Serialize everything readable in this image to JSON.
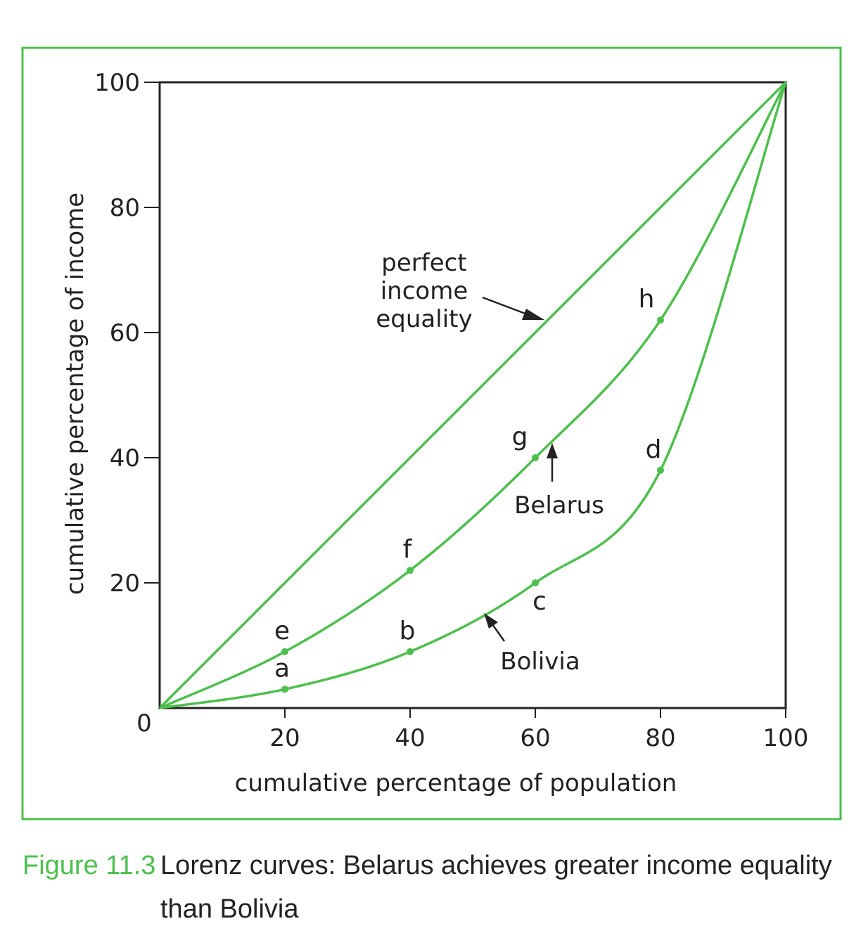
{
  "chart_data": {
    "type": "line",
    "xlabel": "cumulative percentage of population",
    "ylabel": "cumulative percentage of income",
    "xlim": [
      0,
      100
    ],
    "ylim": [
      0,
      100
    ],
    "x_ticks": [
      "20",
      "40",
      "60",
      "80",
      "100"
    ],
    "y_ticks": [
      "20",
      "40",
      "60",
      "80",
      "100"
    ],
    "origin_label": "0",
    "grid": false,
    "line_color": "#4cc04c",
    "series": [
      {
        "name": "perfect income equality",
        "x": [
          0,
          100
        ],
        "y": [
          0,
          100
        ]
      },
      {
        "name": "Belarus",
        "x": [
          0,
          20,
          40,
          60,
          80,
          100
        ],
        "y": [
          0,
          9,
          22,
          40,
          62,
          100
        ],
        "point_labels": [
          "",
          "e",
          "f",
          "g",
          "h",
          ""
        ]
      },
      {
        "name": "Bolivia",
        "x": [
          0,
          20,
          40,
          60,
          80,
          100
        ],
        "y": [
          0,
          3,
          9,
          20,
          38,
          100
        ],
        "point_labels": [
          "",
          "a",
          "b",
          "c",
          "d",
          ""
        ]
      }
    ],
    "annotations": {
      "equality_lines": [
        "perfect",
        "income",
        "equality"
      ],
      "belarus": "Belarus",
      "bolivia": "Bolivia"
    }
  },
  "caption": {
    "figure_number": "Figure 11.3",
    "text": "Lorenz curves: Belarus achieves greater income equality than Bolivia"
  }
}
